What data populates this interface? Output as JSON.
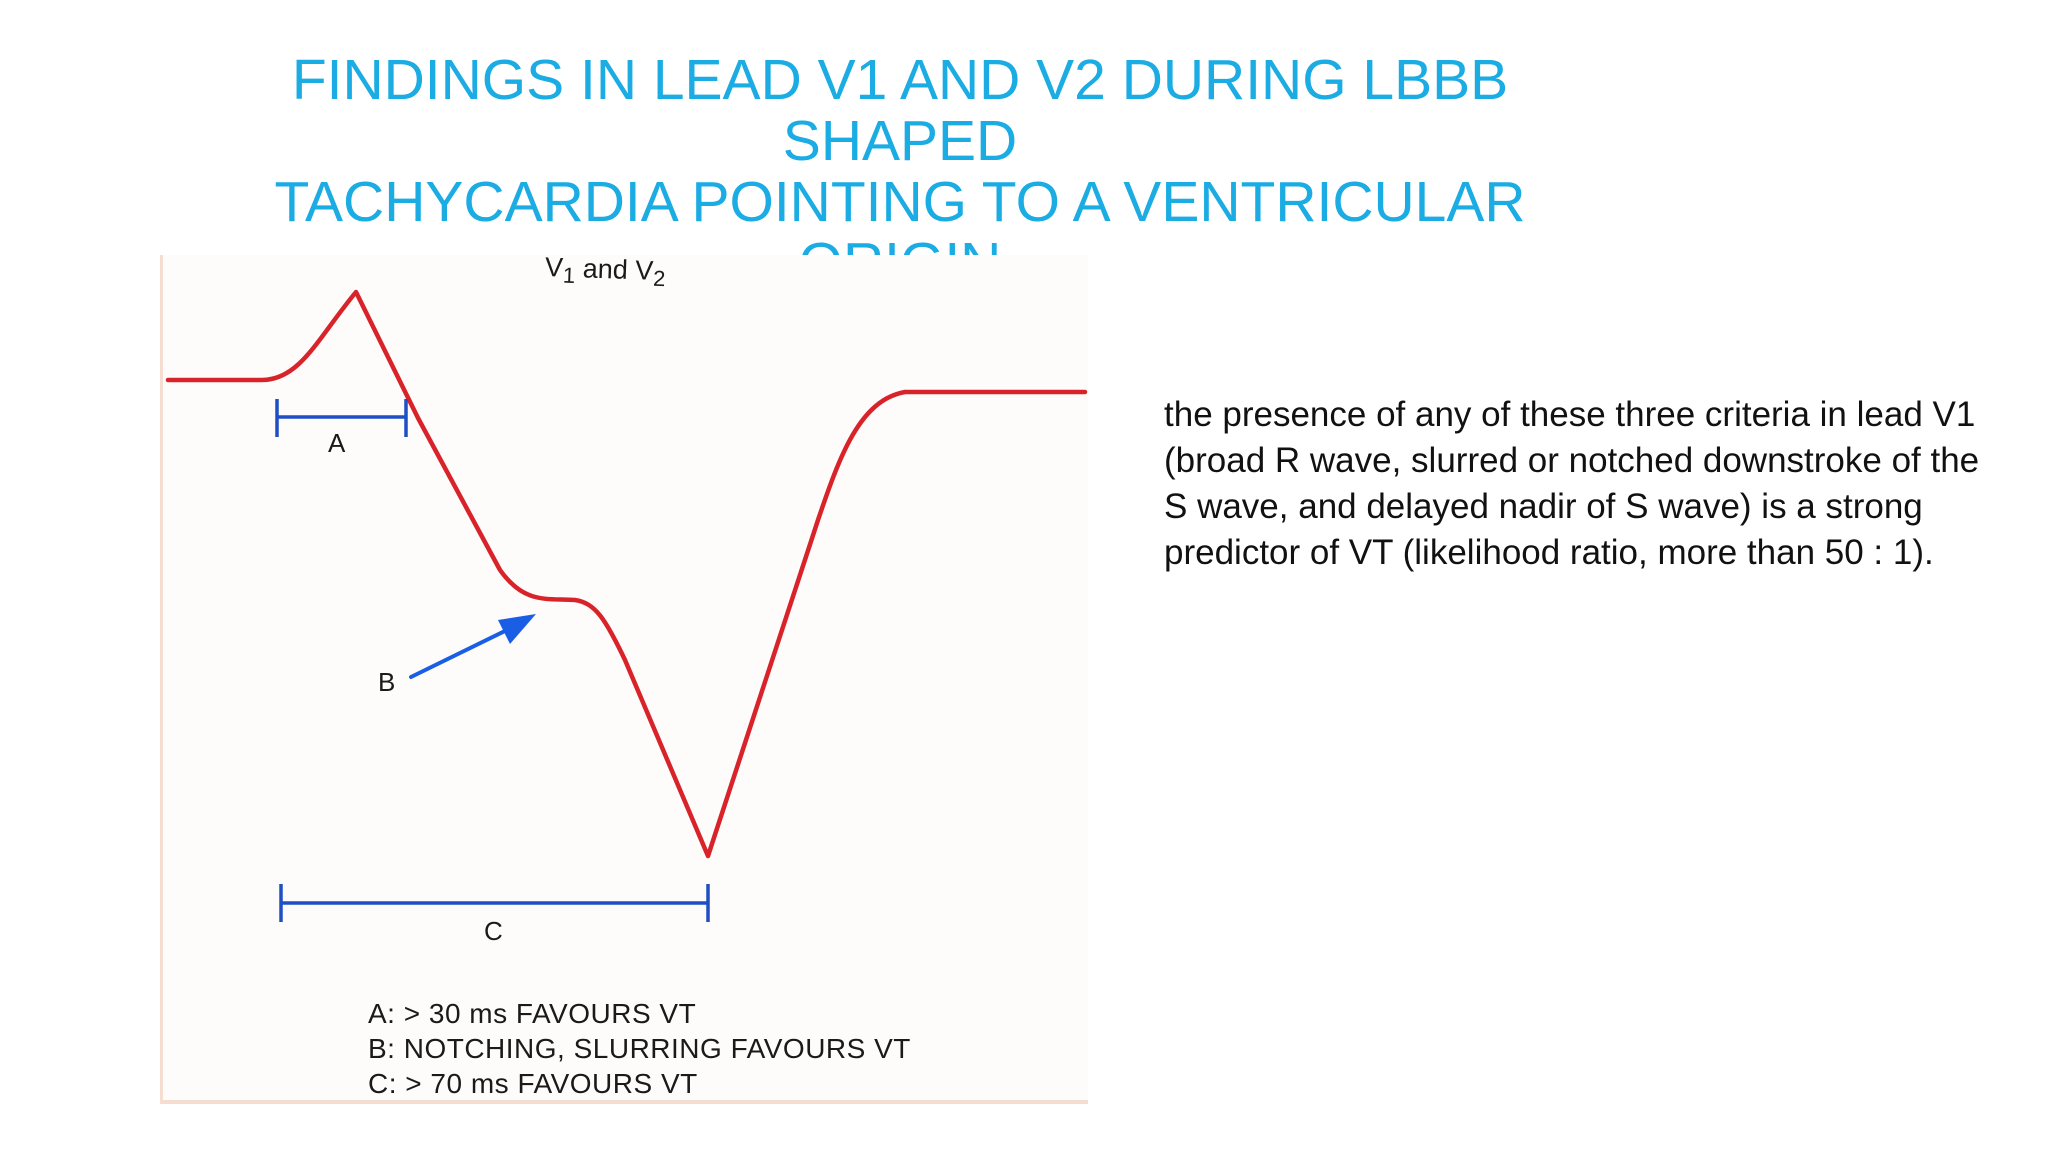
{
  "title": {
    "line1": "FINDINGS IN LEAD V1 AND V2 DURING LBBB SHAPED",
    "line2": "TACHYCARDIA POINTING TO A VENTRICULAR ORIGIN"
  },
  "figure": {
    "lead_label_main": "V",
    "lead_label_sub1": "1",
    "lead_label_and": " and V",
    "lead_label_sub2": "2",
    "interval_a_label": "A",
    "marker_b_label": "B",
    "interval_c_label": "C",
    "legend": [
      "A: > 30 ms FAVOURS VT",
      "B: NOTCHING, SLURRING FAVOURS VT",
      "C: > 70 ms FAVOURS VT"
    ],
    "colors": {
      "waveform": "#d9232a",
      "markers": "#1f4fc4",
      "arrow": "#1a5ee6",
      "panel_border": "#f6ddd2"
    }
  },
  "description": "the presence of any of these three criteria in lead V1 (broad R wave, slurred or notched downstroke of the S wave, and delayed nadir of S wave) is a strong predictor of VT (likelihood ratio, more than 50 : 1).",
  "colors": {
    "title": "#1aace3",
    "text": "#111111"
  }
}
